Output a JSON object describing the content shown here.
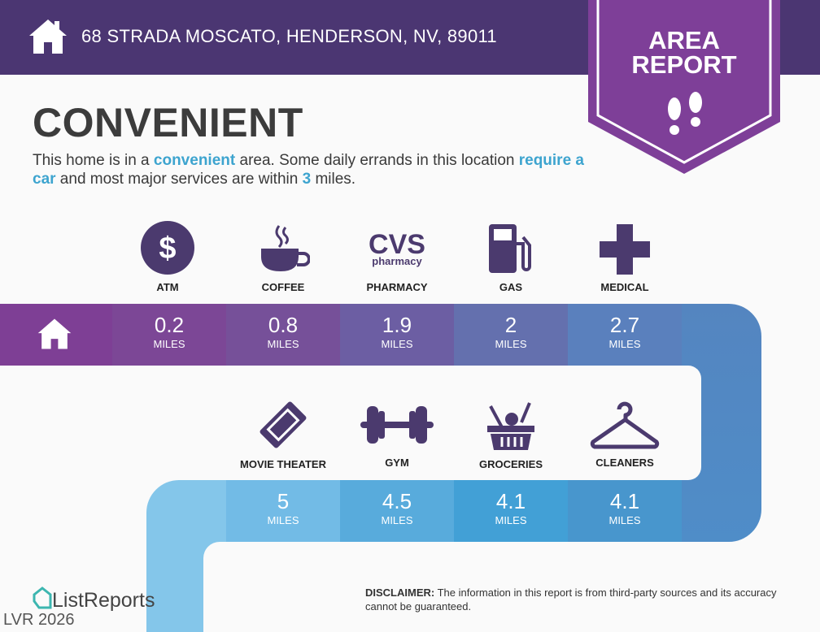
{
  "header": {
    "address": "68 STRADA MOSCATO, HENDERSON, NV, 89011"
  },
  "badge": {
    "line1": "AREA",
    "line2": "REPORT"
  },
  "title": "CONVENIENT",
  "description": {
    "p1": "This home is in a ",
    "hl1": "convenient",
    "p2": " area. Some daily errands in this location ",
    "hl2": "require a car",
    "p3": " and most major services are within ",
    "hl3": "3",
    "p4": " miles."
  },
  "row1": [
    {
      "label": "ATM",
      "value": "0.2",
      "unit": "MILES",
      "icon": "dollar-icon",
      "color": "#7c4796"
    },
    {
      "label": "COFFEE",
      "value": "0.8",
      "unit": "MILES",
      "icon": "coffee-icon",
      "color": "#765099"
    },
    {
      "label": "PHARMACY",
      "value": "1.9",
      "unit": "MILES",
      "icon": "cvs-pharmacy-logo",
      "logo_text": "CVS pharmacy",
      "color": "#6c5ea3"
    },
    {
      "label": "GAS",
      "value": "2",
      "unit": "MILES",
      "icon": "gas-pump-icon",
      "color": "#6470ae"
    },
    {
      "label": "MEDICAL",
      "value": "2.7",
      "unit": "MILES",
      "icon": "medical-cross-icon",
      "color": "#5a80bd"
    }
  ],
  "row2": [
    {
      "label": "MOVIE THEATER",
      "value": "5",
      "unit": "MILES",
      "icon": "ticket-icon",
      "color": "#72bbe6"
    },
    {
      "label": "GYM",
      "value": "4.5",
      "unit": "MILES",
      "icon": "dumbbell-icon",
      "color": "#58abdc"
    },
    {
      "label": "GROCERIES",
      "value": "4.1",
      "unit": "MILES",
      "icon": "grocery-basket-icon",
      "color": "#42a0d6"
    },
    {
      "label": "CLEANERS",
      "value": "4.1",
      "unit": "MILES",
      "icon": "hanger-icon",
      "color": "#4896cd"
    }
  ],
  "footer": {
    "logo": "ListReports",
    "disclaimer_label": "DISCLAIMER:",
    "disclaimer": " The information in this report is from third-party sources and its accuracy cannot be guaranteed.",
    "watermark": "LVR 2026"
  }
}
